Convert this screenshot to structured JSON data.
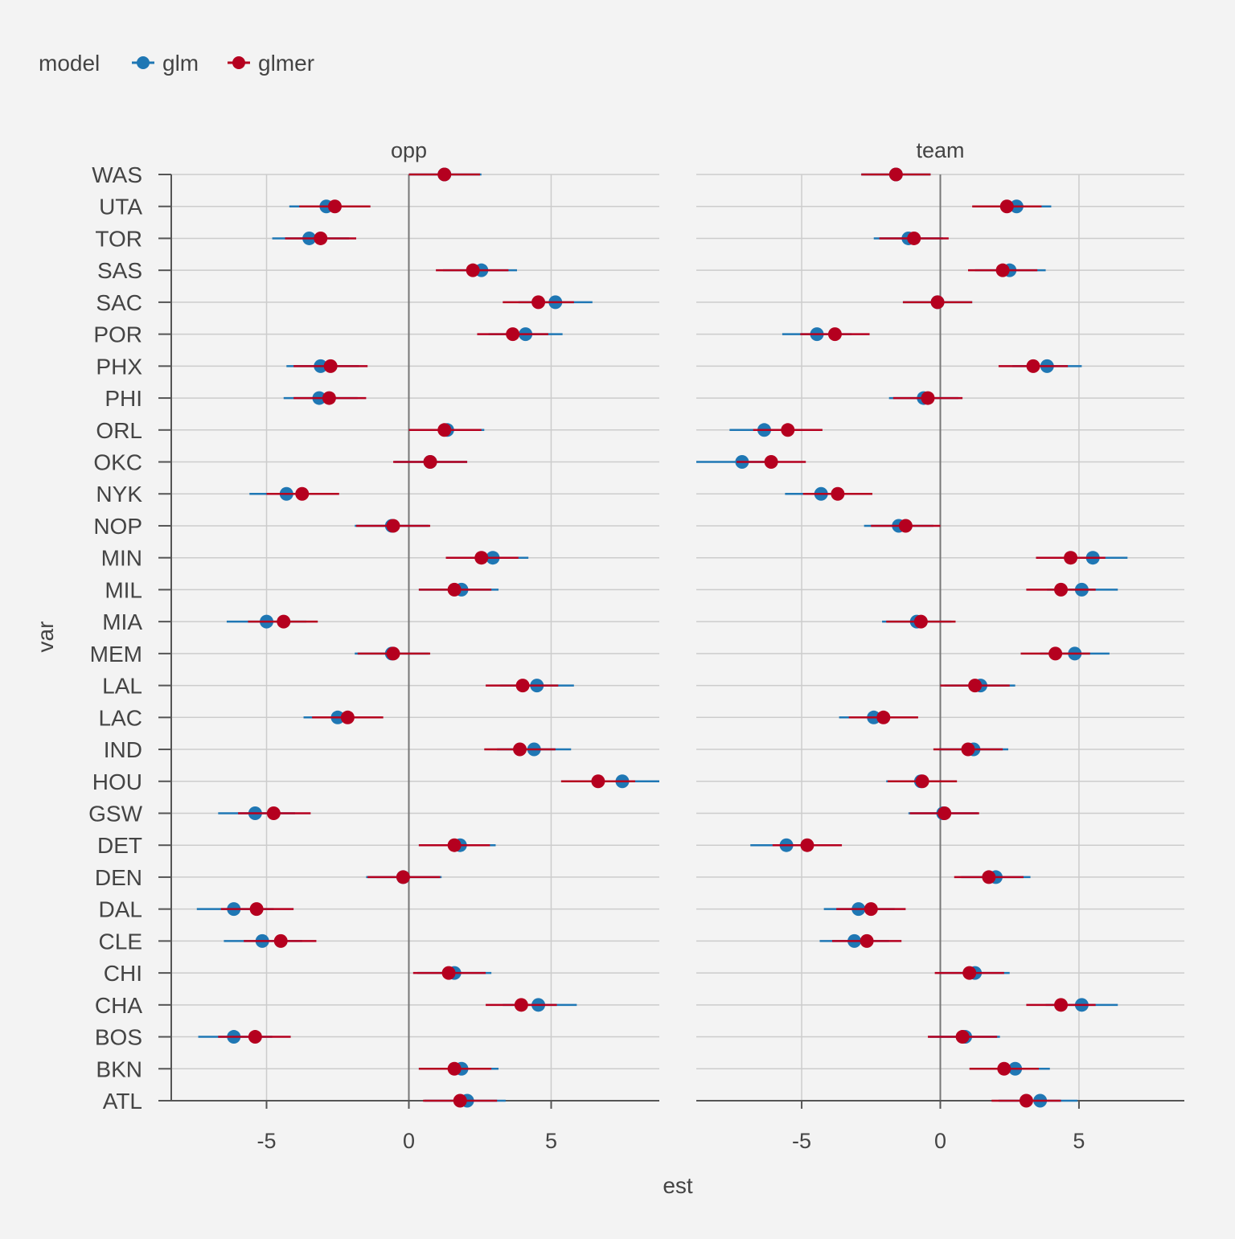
{
  "chart_data": {
    "type": "dot-errorbar",
    "legend": {
      "title": "model",
      "placement": "top-left",
      "entries": [
        {
          "name": "glm",
          "color": "#1f77b4"
        },
        {
          "name": "glmer",
          "color": "#b5001f"
        }
      ]
    },
    "xlabel": "est",
    "ylabel": "var",
    "xlim": [
      -8.8,
      8.8
    ],
    "xticks": [
      -5,
      0,
      5
    ],
    "xtick_labels": [
      "-5",
      "0",
      "5"
    ],
    "zero_line": 0,
    "grid": true,
    "categories": [
      "ATL",
      "BKN",
      "BOS",
      "CHA",
      "CHI",
      "CLE",
      "DAL",
      "DEN",
      "DET",
      "GSW",
      "HOU",
      "IND",
      "LAC",
      "LAL",
      "MEM",
      "MIA",
      "MIL",
      "MIN",
      "NOP",
      "NYK",
      "OKC",
      "ORL",
      "PHI",
      "PHX",
      "POR",
      "SAC",
      "SAS",
      "TOR",
      "UTA",
      "WAS"
    ],
    "panels": [
      {
        "title": "opp",
        "series": [
          {
            "name": "glm",
            "est": [
              2.05,
              1.85,
              -6.15,
              4.55,
              1.6,
              -5.15,
              -6.15,
              -0.2,
              1.8,
              -5.4,
              7.5,
              4.4,
              -2.5,
              4.5,
              -0.6,
              -5.0,
              1.85,
              2.95,
              -0.6,
              -4.3,
              0.75,
              1.35,
              -3.15,
              -3.1,
              4.1,
              5.15,
              2.55,
              -3.5,
              -2.9,
              1.25
            ],
            "low": [
              0.55,
              0.35,
              -7.4,
              3.3,
              0.3,
              -6.5,
              -7.45,
              -1.5,
              0.35,
              -6.7,
              6.1,
              3.1,
              -3.7,
              3.2,
              -1.9,
              -6.4,
              0.35,
              1.6,
              -1.9,
              -5.6,
              -0.5,
              0.0,
              -4.4,
              -4.3,
              2.8,
              3.85,
              1.2,
              -4.8,
              -4.2,
              0.0
            ],
            "high": [
              3.4,
              3.15,
              -4.8,
              5.9,
              2.9,
              -3.75,
              -4.75,
              1.15,
              3.05,
              -4.0,
              8.9,
              5.7,
              -1.1,
              5.8,
              0.7,
              -3.6,
              3.15,
              4.2,
              0.7,
              -3.0,
              2.05,
              2.65,
              -1.8,
              -1.75,
              5.4,
              6.45,
              3.8,
              -2.1,
              -1.5,
              2.55
            ]
          },
          {
            "name": "glmer",
            "est": [
              1.8,
              1.6,
              -5.4,
              3.95,
              1.4,
              -4.5,
              -5.35,
              -0.2,
              1.6,
              -4.75,
              6.65,
              3.9,
              -2.15,
              4.0,
              -0.55,
              -4.4,
              1.6,
              2.55,
              -0.55,
              -3.75,
              0.75,
              1.25,
              -2.8,
              -2.75,
              3.65,
              4.55,
              2.25,
              -3.1,
              -2.6,
              1.25
            ],
            "low": [
              0.5,
              0.35,
              -6.7,
              2.7,
              0.15,
              -5.8,
              -6.6,
              -1.45,
              0.35,
              -6.0,
              5.35,
              2.65,
              -3.4,
              2.7,
              -1.8,
              -5.65,
              0.35,
              1.3,
              -1.85,
              -5.0,
              -0.55,
              0.0,
              -4.05,
              -4.05,
              2.4,
              3.3,
              0.95,
              -4.35,
              -3.85,
              0.0
            ],
            "high": [
              3.1,
              2.9,
              -4.15,
              5.2,
              2.7,
              -3.25,
              -4.05,
              1.1,
              2.85,
              -3.45,
              7.95,
              5.15,
              -0.9,
              5.25,
              0.75,
              -3.2,
              2.9,
              3.85,
              0.75,
              -2.45,
              2.05,
              2.55,
              -1.5,
              -1.45,
              4.9,
              5.8,
              3.5,
              -1.85,
              -1.35,
              2.5
            ]
          }
        ]
      },
      {
        "title": "team",
        "series": [
          {
            "name": "glm",
            "est": [
              3.6,
              2.7,
              0.9,
              5.1,
              1.25,
              -3.1,
              -2.95,
              2.0,
              -5.55,
              0.1,
              -0.7,
              1.2,
              -2.4,
              1.45,
              4.85,
              -0.85,
              5.1,
              5.5,
              -1.5,
              -4.3,
              -7.15,
              -6.35,
              -0.6,
              3.85,
              -4.45,
              -0.1,
              2.5,
              -1.15,
              2.75,
              -1.6
            ],
            "low": [
              2.1,
              1.45,
              -0.4,
              3.8,
              0.0,
              -4.35,
              -4.2,
              0.75,
              -6.85,
              -1.15,
              -1.95,
              -0.05,
              -3.65,
              0.15,
              3.6,
              -2.1,
              3.85,
              4.25,
              -2.75,
              -5.6,
              -8.8,
              -7.6,
              -1.85,
              2.6,
              -5.7,
              -1.35,
              1.25,
              -2.4,
              1.5,
              -2.85
            ],
            "high": [
              4.95,
              3.95,
              2.15,
              6.4,
              2.5,
              -1.85,
              -1.65,
              3.25,
              -4.25,
              1.35,
              0.55,
              2.45,
              -1.15,
              2.7,
              6.1,
              0.4,
              6.4,
              6.75,
              -0.25,
              -3.05,
              -5.85,
              -5.1,
              0.65,
              5.1,
              -3.2,
              1.15,
              3.8,
              0.1,
              4.0,
              -0.35
            ]
          },
          {
            "name": "glmer",
            "est": [
              3.1,
              2.3,
              0.8,
              4.35,
              1.05,
              -2.65,
              -2.5,
              1.75,
              -4.8,
              0.15,
              -0.65,
              1.0,
              -2.05,
              1.25,
              4.15,
              -0.7,
              4.35,
              4.7,
              -1.25,
              -3.7,
              -6.1,
              -5.5,
              -0.45,
              3.35,
              -3.8,
              -0.1,
              2.25,
              -0.95,
              2.4,
              -1.6
            ],
            "low": [
              1.85,
              1.05,
              -0.45,
              3.1,
              -0.2,
              -3.9,
              -3.75,
              0.5,
              -6.05,
              -1.1,
              -1.9,
              -0.25,
              -3.3,
              0.0,
              2.9,
              -1.95,
              3.1,
              3.45,
              -2.5,
              -4.95,
              -7.35,
              -6.75,
              -1.7,
              2.1,
              -5.05,
              -1.35,
              1.0,
              -2.2,
              1.15,
              -2.85
            ],
            "high": [
              4.35,
              3.55,
              2.05,
              5.6,
              2.3,
              -1.4,
              -1.25,
              3.0,
              -3.55,
              1.4,
              0.6,
              2.25,
              -0.8,
              2.5,
              5.4,
              0.55,
              5.6,
              5.95,
              0.0,
              -2.45,
              -4.85,
              -4.25,
              0.8,
              4.6,
              -2.55,
              1.15,
              3.5,
              0.3,
              3.65,
              -0.35
            ]
          }
        ]
      }
    ]
  }
}
